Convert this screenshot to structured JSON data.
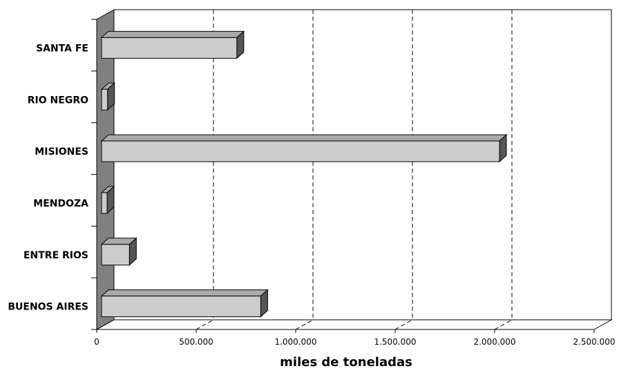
{
  "chart_data": {
    "type": "bar",
    "orientation": "horizontal",
    "style": "3d",
    "categories": [
      "SANTA FE",
      "RIO NEGRO",
      "MISIONES",
      "MENDOZA",
      "ENTRE RIOS",
      "BUENOS AIRES"
    ],
    "values": [
      680000,
      30000,
      2000000,
      25000,
      140000,
      800000
    ],
    "xlabel": "miles de toneladas",
    "ylabel": "",
    "xlim": [
      0,
      2500000
    ],
    "x_ticks": [
      "0",
      "500.000",
      "1.000.000",
      "1.500.000",
      "2.000.000",
      "2.500.000"
    ],
    "grid": "vertical-dashed",
    "colors": {
      "bar_front": "#cccccc",
      "bar_top": "#aaaaaa",
      "bar_side": "#555555",
      "wall": "#808080"
    }
  }
}
